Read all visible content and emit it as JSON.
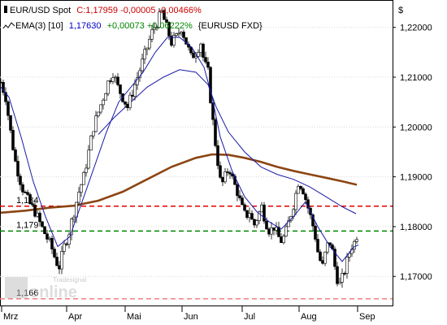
{
  "header": {
    "line1": {
      "instrument": "EUR/USD Spot",
      "quote": "C:1,17959 -0,00005 -0,00466%"
    },
    "line2": {
      "indicator": "EMA(3) [10]",
      "value": "1,17630",
      "change": "+0,00073 +0,06222%",
      "source": "{EURUSD FXD}"
    }
  },
  "watermark": {
    "brand_small": "Tradesignal",
    "brand_large": "online"
  },
  "colors": {
    "background": "#ffffff",
    "up_candle": "#ffffff",
    "down_candle": "#000000",
    "ema_line": "#1a1aa6",
    "ma_long": "#8b4513",
    "level_red": "#e00000",
    "level_green": "#008800",
    "level_pink": "#f08080",
    "quote_red": "#cc0000",
    "value_blue": "#0000cc",
    "change_green": "#008800"
  },
  "chart_data": {
    "type": "candlestick",
    "currency_label": "$",
    "x_labels": [
      "Mrz",
      "Apr",
      "Mai",
      "Jun",
      "Jul",
      "Aug",
      "Sep"
    ],
    "y_labels": [
      "1,22000",
      "1,21000",
      "1,20000",
      "1,19000",
      "1,18000",
      "1,17000"
    ],
    "ylim": [
      1.164,
      1.2255
    ],
    "y_ticks": [
      1.22,
      1.21,
      1.2,
      1.19,
      1.18,
      1.17
    ],
    "levels": [
      {
        "label": "1,184",
        "value": 1.1841,
        "color": "#e00000"
      },
      {
        "label": "1,179",
        "value": 1.1791,
        "color": "#008800"
      },
      {
        "label": "1,166",
        "value": 1.1655,
        "color": "#f08080"
      }
    ],
    "close_path": [
      [
        0,
        1.209
      ],
      [
        6,
        1.206
      ],
      [
        12,
        1.199
      ],
      [
        18,
        1.193
      ],
      [
        26,
        1.188
      ],
      [
        34,
        1.185
      ],
      [
        42,
        1.183
      ],
      [
        50,
        1.18
      ],
      [
        56,
        1.178
      ],
      [
        62,
        1.176
      ],
      [
        68,
        1.173
      ],
      [
        72,
        1.172
      ],
      [
        78,
        1.176
      ],
      [
        84,
        1.179
      ],
      [
        90,
        1.183
      ],
      [
        96,
        1.187
      ],
      [
        102,
        1.19
      ],
      [
        108,
        1.195
      ],
      [
        114,
        1.2
      ],
      [
        120,
        1.203
      ],
      [
        126,
        1.206
      ],
      [
        132,
        1.209
      ],
      [
        138,
        1.211
      ],
      [
        144,
        1.208
      ],
      [
        150,
        1.206
      ],
      [
        156,
        1.204
      ],
      [
        162,
        1.207
      ],
      [
        168,
        1.21
      ],
      [
        174,
        1.213
      ],
      [
        180,
        1.216
      ],
      [
        186,
        1.219
      ],
      [
        192,
        1.221
      ],
      [
        198,
        1.223
      ],
      [
        204,
        1.22
      ],
      [
        210,
        1.217
      ],
      [
        216,
        1.218
      ],
      [
        222,
        1.22
      ],
      [
        228,
        1.217
      ],
      [
        234,
        1.214
      ],
      [
        240,
        1.215
      ],
      [
        246,
        1.217
      ],
      [
        250,
        1.213
      ],
      [
        255,
        1.211
      ],
      [
        259,
        1.204
      ],
      [
        263,
        1.198
      ],
      [
        267,
        1.193
      ],
      [
        271,
        1.188
      ],
      [
        276,
        1.19
      ],
      [
        281,
        1.192
      ],
      [
        286,
        1.189
      ],
      [
        291,
        1.187
      ],
      [
        296,
        1.184
      ],
      [
        301,
        1.182
      ],
      [
        306,
        1.183
      ],
      [
        311,
        1.18
      ],
      [
        316,
        1.182
      ],
      [
        321,
        1.184
      ],
      [
        326,
        1.181
      ],
      [
        331,
        1.179
      ],
      [
        336,
        1.18
      ],
      [
        341,
        1.178
      ],
      [
        346,
        1.177
      ],
      [
        351,
        1.179
      ],
      [
        356,
        1.182
      ],
      [
        361,
        1.185
      ],
      [
        366,
        1.189
      ],
      [
        371,
        1.188
      ],
      [
        376,
        1.185
      ],
      [
        381,
        1.182
      ],
      [
        386,
        1.179
      ],
      [
        391,
        1.174
      ],
      [
        396,
        1.172
      ],
      [
        401,
        1.176
      ],
      [
        406,
        1.177
      ],
      [
        411,
        1.172
      ],
      [
        416,
        1.168
      ],
      [
        421,
        1.17
      ],
      [
        426,
        1.173
      ],
      [
        431,
        1.176
      ],
      [
        436,
        1.177
      ],
      [
        440,
        1.1796
      ]
    ],
    "ema_path": [
      [
        0,
        1.208
      ],
      [
        10,
        1.206
      ],
      [
        25,
        1.198
      ],
      [
        40,
        1.189
      ],
      [
        55,
        1.182
      ],
      [
        70,
        1.176
      ],
      [
        85,
        1.178
      ],
      [
        100,
        1.185
      ],
      [
        115,
        1.192
      ],
      [
        130,
        1.199
      ],
      [
        145,
        1.205
      ],
      [
        160,
        1.208
      ],
      [
        175,
        1.211
      ],
      [
        190,
        1.215
      ],
      [
        205,
        1.218
      ],
      [
        220,
        1.218
      ],
      [
        235,
        1.216
      ],
      [
        250,
        1.212
      ],
      [
        260,
        1.206
      ],
      [
        270,
        1.198
      ],
      [
        285,
        1.191
      ],
      [
        300,
        1.186
      ],
      [
        315,
        1.183
      ],
      [
        330,
        1.181
      ],
      [
        345,
        1.1795
      ],
      [
        360,
        1.182
      ],
      [
        375,
        1.185
      ],
      [
        390,
        1.18
      ],
      [
        405,
        1.176
      ],
      [
        420,
        1.173
      ],
      [
        435,
        1.176
      ],
      [
        440,
        1.1763
      ]
    ],
    "ema_slow_path": [
      [
        120,
        1.1985
      ],
      [
        140,
        1.202
      ],
      [
        160,
        1.205
      ],
      [
        180,
        1.208
      ],
      [
        200,
        1.21
      ],
      [
        220,
        1.2115
      ],
      [
        240,
        1.211
      ],
      [
        255,
        1.2085
      ],
      [
        265,
        1.204
      ],
      [
        280,
        1.199
      ],
      [
        300,
        1.195
      ],
      [
        320,
        1.192
      ],
      [
        340,
        1.1905
      ],
      [
        360,
        1.1895
      ],
      [
        380,
        1.188
      ],
      [
        400,
        1.186
      ],
      [
        420,
        1.184
      ],
      [
        437,
        1.1826
      ]
    ],
    "ma_long_path": [
      [
        0,
        1.1828
      ],
      [
        30,
        1.1832
      ],
      [
        60,
        1.1838
      ],
      [
        90,
        1.1842
      ],
      [
        120,
        1.1852
      ],
      [
        150,
        1.187
      ],
      [
        180,
        1.1895
      ],
      [
        210,
        1.192
      ],
      [
        240,
        1.1938
      ],
      [
        260,
        1.1945
      ],
      [
        280,
        1.1944
      ],
      [
        300,
        1.1938
      ],
      [
        320,
        1.193
      ],
      [
        340,
        1.192
      ],
      [
        360,
        1.1912
      ],
      [
        380,
        1.1905
      ],
      [
        400,
        1.1898
      ],
      [
        420,
        1.1891
      ],
      [
        438,
        1.1884
      ]
    ]
  }
}
